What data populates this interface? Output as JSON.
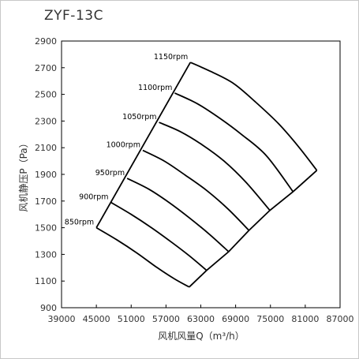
{
  "chart_data": {
    "type": "line",
    "title": "ZYF-13C",
    "xlabel": "风机风量Q（m³/h）",
    "ylabel": "风机静压P（Pa）",
    "xlim": [
      39000,
      87000
    ],
    "ylim": [
      900,
      2900
    ],
    "xticks": [
      "39000",
      "45000",
      "51000",
      "57000",
      "63000",
      "69000",
      "75000",
      "81000",
      "87000"
    ],
    "yticks": [
      "900",
      "1100",
      "1300",
      "1500",
      "1700",
      "1900",
      "2100",
      "2300",
      "2500",
      "2700",
      "2900"
    ],
    "grid": false,
    "colors": {
      "line": "#000000",
      "axis": "#000000"
    },
    "series": [
      {
        "name": "850rpm",
        "points": [
          [
            45000,
            1500
          ],
          [
            48500,
            1410
          ],
          [
            52000,
            1310
          ],
          [
            55500,
            1200
          ],
          [
            58500,
            1115
          ],
          [
            61000,
            1055
          ]
        ]
      },
      {
        "name": "900rpm",
        "points": [
          [
            47500,
            1690
          ],
          [
            51000,
            1600
          ],
          [
            54500,
            1500
          ],
          [
            58000,
            1390
          ],
          [
            61000,
            1290
          ],
          [
            64000,
            1180
          ]
        ]
      },
      {
        "name": "950rpm",
        "points": [
          [
            50300,
            1870
          ],
          [
            54000,
            1790
          ],
          [
            57500,
            1690
          ],
          [
            61000,
            1575
          ],
          [
            64500,
            1450
          ],
          [
            67800,
            1320
          ]
        ]
      },
      {
        "name": "1000rpm",
        "points": [
          [
            53000,
            2080
          ],
          [
            56700,
            2000
          ],
          [
            60300,
            1895
          ],
          [
            64000,
            1780
          ],
          [
            67700,
            1640
          ],
          [
            71300,
            1480
          ]
        ]
      },
      {
        "name": "1050rpm",
        "points": [
          [
            55800,
            2290
          ],
          [
            59500,
            2220
          ],
          [
            63300,
            2120
          ],
          [
            67000,
            2000
          ],
          [
            70800,
            1840
          ],
          [
            74900,
            1630
          ]
        ]
      },
      {
        "name": "1100rpm",
        "points": [
          [
            58500,
            2510
          ],
          [
            62400,
            2430
          ],
          [
            66300,
            2320
          ],
          [
            70000,
            2200
          ],
          [
            74300,
            2040
          ],
          [
            78900,
            1770
          ]
        ]
      },
      {
        "name": "1150rpm",
        "points": [
          [
            61200,
            2740
          ],
          [
            64800,
            2670
          ],
          [
            68700,
            2580
          ],
          [
            72500,
            2440
          ],
          [
            76400,
            2280
          ],
          [
            79800,
            2110
          ],
          [
            83000,
            1930
          ]
        ]
      }
    ]
  }
}
